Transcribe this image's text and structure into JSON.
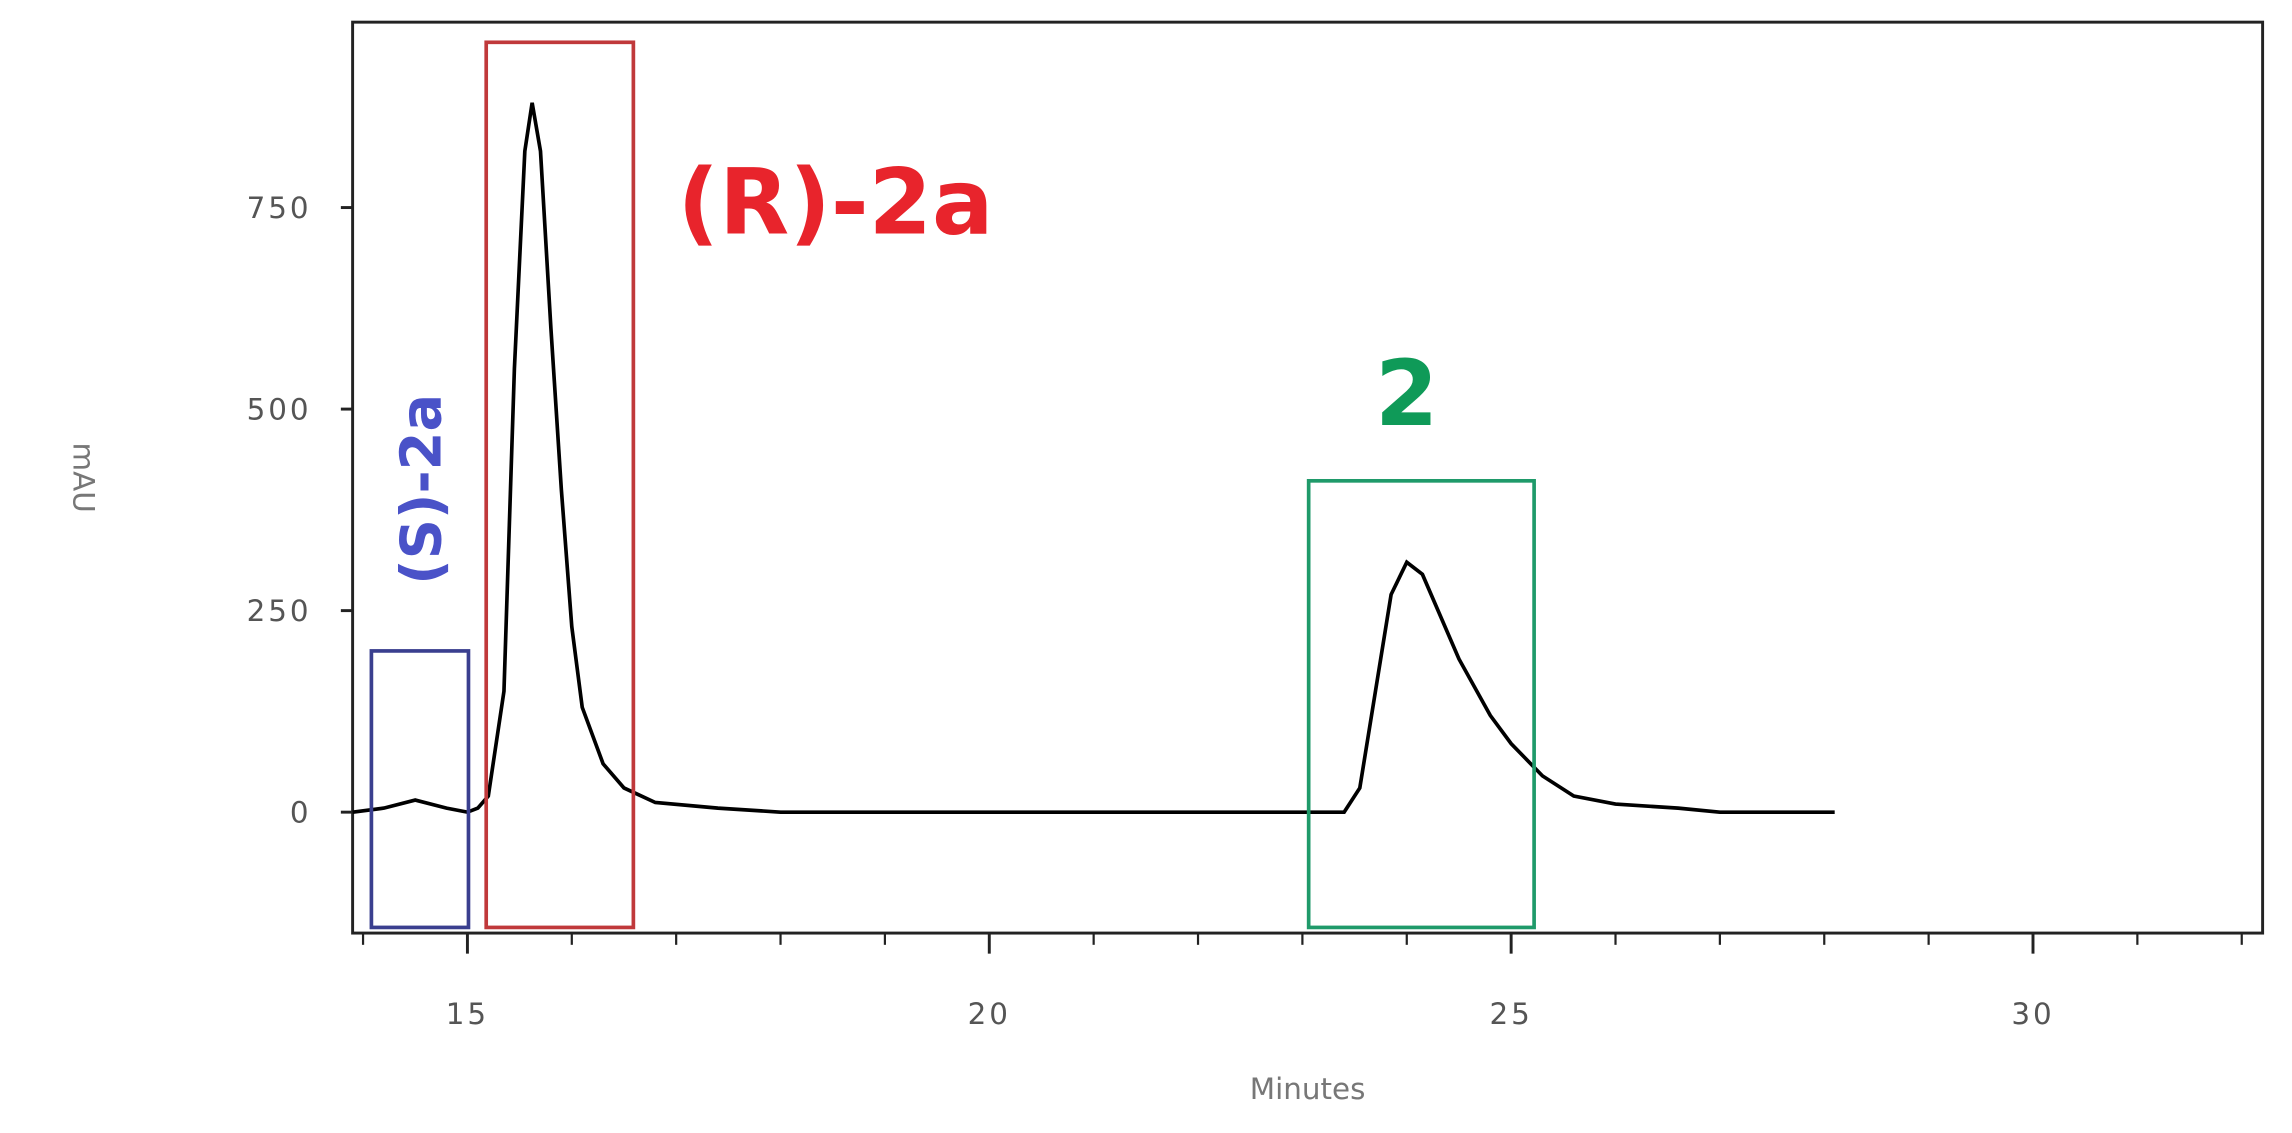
{
  "chart_data": {
    "type": "line",
    "x_label": "Minutes",
    "y_label": "mAU",
    "xlim": [
      13.9,
      32.2
    ],
    "ylim": [
      -150,
      980
    ],
    "xticks": [
      15,
      20,
      25,
      30
    ],
    "xminorticks": [
      14,
      16,
      17,
      18,
      19,
      21,
      22,
      23,
      24,
      26,
      27,
      28,
      29,
      31,
      32
    ],
    "yticks": [
      0,
      250,
      500,
      750
    ],
    "series": [
      {
        "color": "#000000",
        "x": [
          13.9,
          14.2,
          14.5,
          14.8,
          15.0,
          15.1,
          15.2,
          15.35,
          15.45,
          15.55,
          15.62,
          15.7,
          15.8,
          15.9,
          16.0,
          16.1,
          16.3,
          16.5,
          16.8,
          17.4,
          18.0,
          23.4,
          23.55,
          23.7,
          23.85,
          24.0,
          24.15,
          24.3,
          24.5,
          24.8,
          25.0,
          25.3,
          25.6,
          26.0,
          26.6,
          27.0,
          28.1
        ],
        "values": [
          0,
          5,
          15,
          5,
          0,
          5,
          20,
          150,
          550,
          820,
          880,
          820,
          600,
          400,
          230,
          130,
          60,
          30,
          12,
          5,
          0,
          0,
          30,
          150,
          270,
          310,
          295,
          250,
          190,
          120,
          85,
          45,
          20,
          10,
          5,
          0,
          0
        ]
      }
    ],
    "regions": [
      {
        "label": "(S)-2a",
        "x": [
          14.08,
          15.01
        ],
        "y": [
          -143,
          200
        ],
        "color": "#3a3f8f",
        "label_color": "#4a52c8"
      },
      {
        "label": "(R)-2a",
        "x": [
          15.18,
          16.59
        ],
        "y": [
          -143,
          955
        ],
        "color": "#c0393b",
        "label_color": "#e8242c"
      },
      {
        "label": "2",
        "x": [
          23.06,
          25.22
        ],
        "y": [
          -143,
          411
        ],
        "color": "#1f9a6a",
        "label_color": "#0f9a58"
      }
    ]
  }
}
